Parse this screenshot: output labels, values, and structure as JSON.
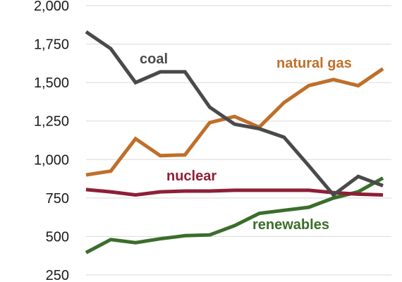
{
  "chart_data": {
    "type": "line",
    "ylim": [
      250,
      2000
    ],
    "yticks": [
      {
        "value": 2000,
        "label": "2,000"
      },
      {
        "value": 1750,
        "label": "1,750"
      },
      {
        "value": 1500,
        "label": "1,500"
      },
      {
        "value": 1250,
        "label": "1,250"
      },
      {
        "value": 1000,
        "label": "1,000"
      },
      {
        "value": 750,
        "label": "750"
      },
      {
        "value": 500,
        "label": "500"
      },
      {
        "value": 250,
        "label": "250"
      }
    ],
    "grid": true,
    "legend": "direct labels on lines",
    "series": [
      {
        "key": "coal",
        "name": "coal",
        "color": "#4a4a4a",
        "values": [
          1830,
          1720,
          1500,
          1570,
          1570,
          1340,
          1230,
          1200,
          1145,
          960,
          770,
          890,
          830
        ]
      },
      {
        "key": "natural_gas",
        "name": "natural gas",
        "color": "#bf6f2a",
        "values": [
          900,
          925,
          1135,
          1025,
          1030,
          1240,
          1280,
          1210,
          1370,
          1480,
          1520,
          1480,
          1590
        ]
      },
      {
        "key": "nuclear",
        "name": "nuclear",
        "color": "#8e1f35",
        "values": [
          805,
          790,
          770,
          790,
          795,
          795,
          800,
          800,
          800,
          800,
          785,
          775,
          770
        ]
      },
      {
        "key": "renewables",
        "name": "renewables",
        "color": "#3a6e2a",
        "values": [
          395,
          480,
          460,
          485,
          505,
          510,
          570,
          650,
          670,
          690,
          750,
          790,
          880
        ]
      }
    ]
  }
}
